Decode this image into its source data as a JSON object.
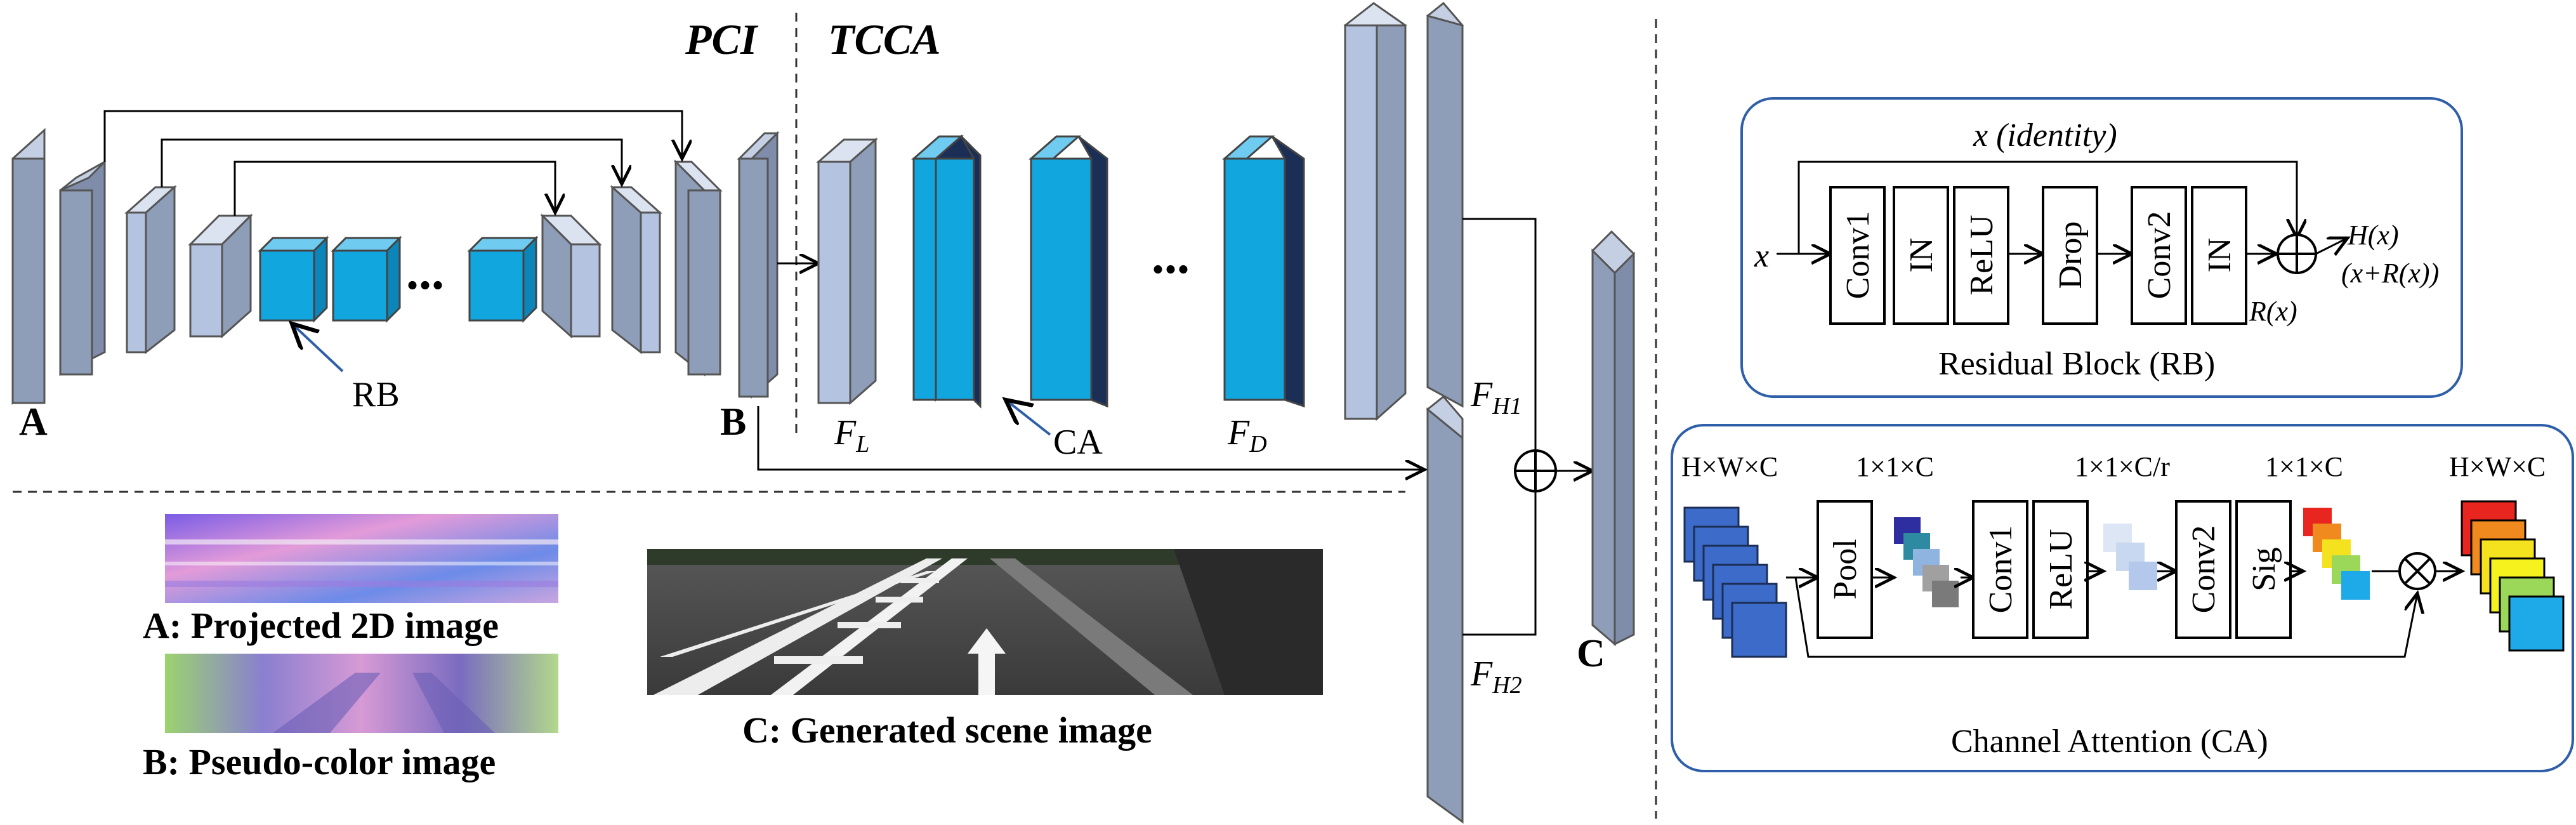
{
  "section_labels": {
    "pci": "PCI",
    "tcca": "TCCA"
  },
  "encoder": {
    "rb_label": "RB",
    "dots": "...",
    "input_label": "A",
    "output_label": "B"
  },
  "tcca_branch": {
    "fl_label": "F",
    "fl_sub": "L",
    "fd_label": "F",
    "fd_sub": "D",
    "ca_label": "CA",
    "dots": "..."
  },
  "fusion": {
    "fh1_label": "F",
    "fh1_sub": "H1",
    "fh2_label": "F",
    "fh2_sub": "H2",
    "output_label": "C",
    "plus_symbol": "⊕"
  },
  "examples": {
    "a_caption": "A: Projected 2D image",
    "b_caption": "B: Pseudo-color image",
    "c_caption": "C: Generated scene image"
  },
  "residual_block": {
    "identity_label": "x  (identity)",
    "input_label": "x",
    "layers": [
      "Conv1",
      "IN",
      "ReLU",
      "Drop",
      "Conv2",
      "IN"
    ],
    "r_label": "R(x)",
    "h_label": "H(x)",
    "h_expr": "(x+R(x))",
    "title": "Residual Block (RB)"
  },
  "channel_attention": {
    "dims_in": "H×W×C",
    "dims_pool": "1×1×C",
    "dims_relu": "1×1×C/r",
    "dims_sig": "1×1×C",
    "dims_out": "H×W×C",
    "layers": [
      "Pool",
      "Conv1",
      "ReLU",
      "Conv2",
      "Sig"
    ],
    "mult_symbol": "⊗",
    "title": "Channel Attention (CA)"
  },
  "colors": {
    "plate_front": "#8E9DB8",
    "plate_light": "#B4C4E0",
    "cube_cyan": "#12A6DF",
    "navy": "#1B2E55",
    "frame_blue": "#2E5FA8",
    "feature_blue": "#3C6BC9"
  }
}
